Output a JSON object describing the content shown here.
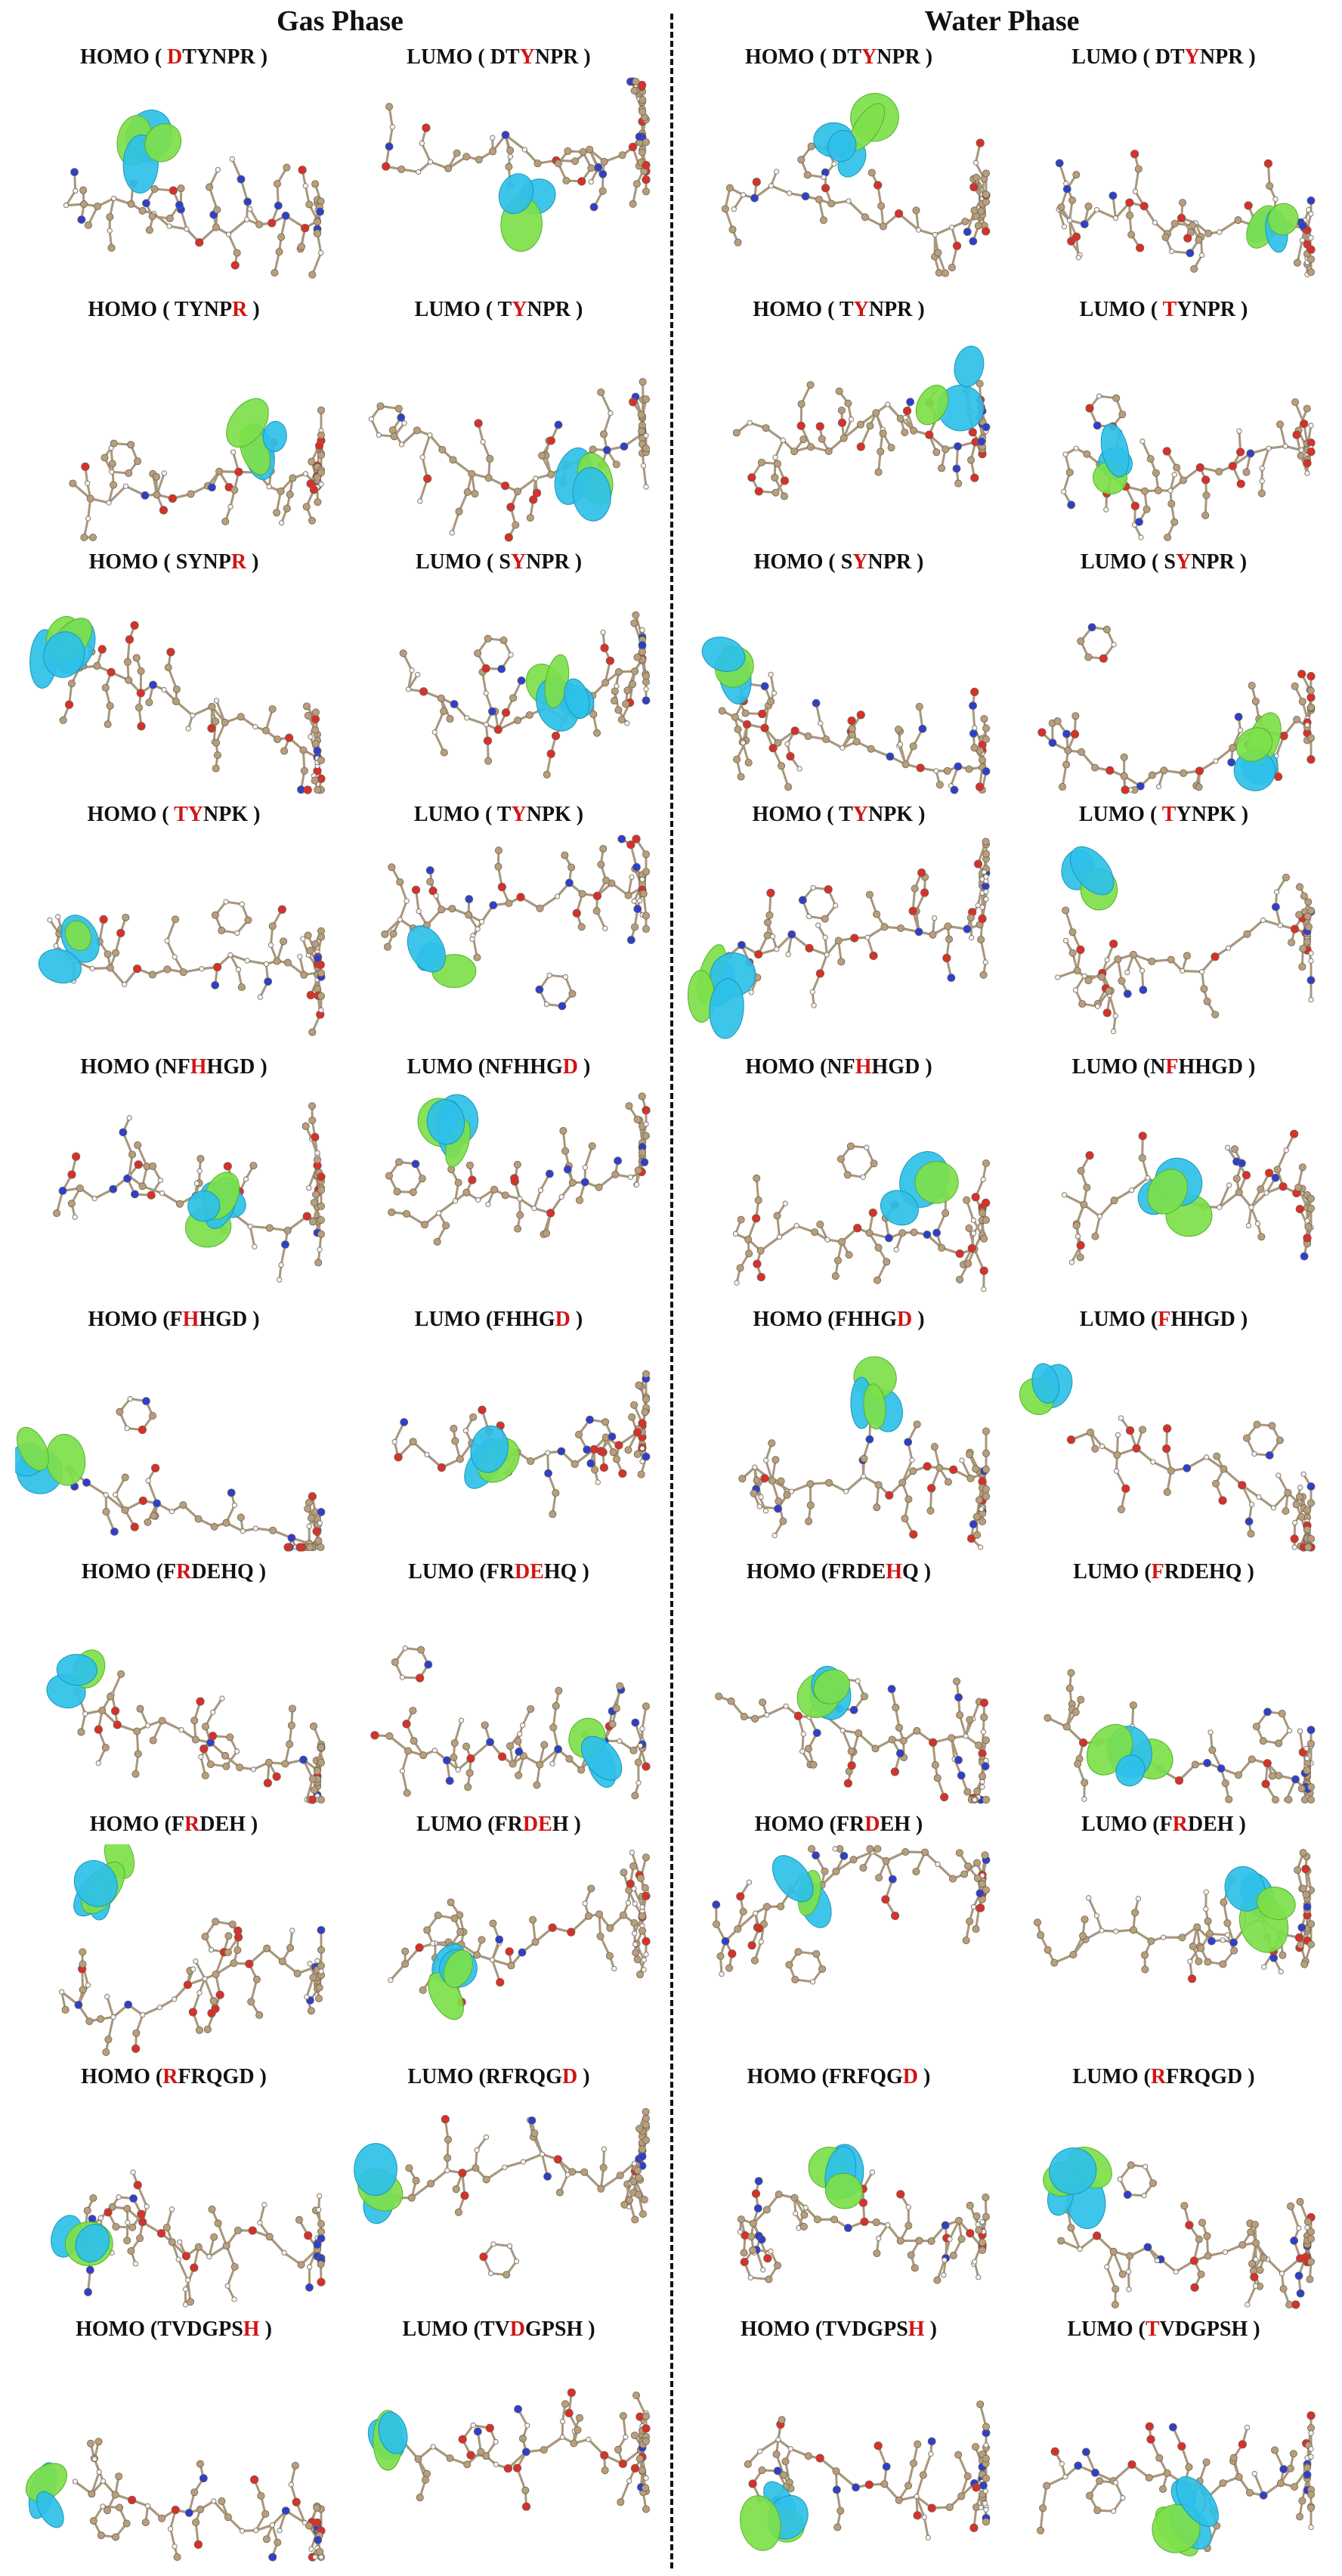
{
  "headers": {
    "gas": "Gas Phase",
    "water": "Water Phase"
  },
  "colors": {
    "highlight": "#d21414",
    "orbital_positive": "#2ec0e8",
    "orbital_negative": "#7ddf4a",
    "carbon": "#b89e7a",
    "oxygen": "#d9302a",
    "nitrogen": "#2c3fcf",
    "hydrogen": "#f2f2f2"
  },
  "panels": [
    {
      "label": [
        "HOMO ( ",
        "D",
        "TYNPR )"
      ]
    },
    {
      "label": [
        "LUMO ( DT",
        "Y",
        "NPR )"
      ]
    },
    {
      "label": [
        "HOMO ( DT",
        "Y",
        "NPR )"
      ]
    },
    {
      "label": [
        "LUMO ( DT",
        "Y",
        "NPR )"
      ]
    },
    {
      "label": [
        "HOMO ( TYNP",
        "R",
        " )"
      ]
    },
    {
      "label": [
        "LUMO ( T",
        "Y",
        "NPR )"
      ]
    },
    {
      "label": [
        "HOMO ( T",
        "Y",
        "NPR )"
      ]
    },
    {
      "label": [
        "LUMO ( ",
        "T",
        "YNPR )"
      ]
    },
    {
      "label": [
        "HOMO ( SYNP",
        "R",
        " )"
      ]
    },
    {
      "label": [
        "LUMO ( S",
        "Y",
        "NPR )"
      ]
    },
    {
      "label": [
        "HOMO ( S",
        "Y",
        "NPR )"
      ]
    },
    {
      "label": [
        "LUMO ( S",
        "Y",
        "NPR )"
      ]
    },
    {
      "label": [
        "HOMO ( ",
        "TY",
        "NPK )"
      ]
    },
    {
      "label": [
        "LUMO ( T",
        "Y",
        "NPK )"
      ]
    },
    {
      "label": [
        "HOMO ( T",
        "Y",
        "NPK )"
      ]
    },
    {
      "label": [
        "LUMO ( ",
        "T",
        "YNPK )"
      ]
    },
    {
      "label": [
        "HOMO (NF",
        "H",
        "HGD )"
      ]
    },
    {
      "label": [
        "LUMO (NFHHG",
        "D",
        " )"
      ]
    },
    {
      "label": [
        "HOMO (NF",
        "H",
        "HGD )"
      ]
    },
    {
      "label": [
        "LUMO (N",
        "F",
        "HHGD )"
      ]
    },
    {
      "label": [
        "HOMO (F",
        "H",
        "HGD )"
      ]
    },
    {
      "label": [
        "LUMO (FHHG",
        "D",
        " )"
      ]
    },
    {
      "label": [
        "HOMO (FHHG",
        "D",
        " )"
      ]
    },
    {
      "label": [
        "LUMO (",
        "F",
        "HHGD )"
      ]
    },
    {
      "label": [
        "HOMO (F",
        "R",
        "DEHQ )"
      ]
    },
    {
      "label": [
        "LUMO (FR",
        "DE",
        "HQ )"
      ]
    },
    {
      "label": [
        "HOMO (FRDE",
        "H",
        "Q )"
      ]
    },
    {
      "label": [
        "LUMO (",
        "F",
        "RDEHQ )"
      ]
    },
    {
      "label": [
        "HOMO (F",
        "R",
        "DEH )"
      ]
    },
    {
      "label": [
        "LUMO (FR",
        "DE",
        "H )"
      ]
    },
    {
      "label": [
        "HOMO (FR",
        "D",
        "EH )"
      ]
    },
    {
      "label": [
        "LUMO (F",
        "R",
        "DEH )"
      ]
    },
    {
      "label": [
        "HOMO (",
        "R",
        "FRQGD )"
      ]
    },
    {
      "label": [
        "LUMO (RFRQG",
        "D",
        " )"
      ]
    },
    {
      "label": [
        "HOMO (FRFQG",
        "D",
        " )"
      ]
    },
    {
      "label": [
        "LUMO (",
        "R",
        "FRQGD )"
      ]
    },
    {
      "label": [
        "HOMO (TVDGPS",
        "H",
        " )"
      ]
    },
    {
      "label": [
        "LUMO (TV",
        "D",
        "GPSH )"
      ]
    },
    {
      "label": [
        "HOMO (TVDGPS",
        "H",
        " )"
      ]
    },
    {
      "label": [
        "LUMO (",
        "T",
        "VDGPSH )"
      ]
    }
  ]
}
